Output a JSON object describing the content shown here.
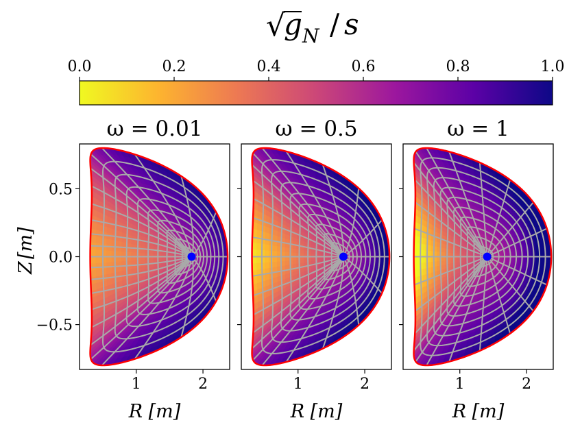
{
  "chart_data": {
    "type": "heatmap",
    "title_parts": {
      "radical": "√",
      "g": "g",
      "sub": "N",
      "slash": "/",
      "s": "s"
    },
    "colorbar": {
      "ticks": [
        "0.0",
        "0.2",
        "0.4",
        "0.6",
        "0.8",
        "1.0"
      ],
      "tick_values": [
        0.0,
        0.2,
        0.4,
        0.6,
        0.8,
        1.0
      ],
      "range": [
        0.0,
        1.0
      ],
      "colormap": "plasma_r",
      "stops": [
        "#f0f921",
        "#fdb42f",
        "#ed7953",
        "#cc4778",
        "#9c179e",
        "#5c01a6",
        "#0d0887"
      ]
    },
    "xlim": [
      0.15,
      2.4
    ],
    "ylim": [
      -0.83,
      0.83
    ],
    "xlabel": {
      "var": "R",
      "unit": "[m]"
    },
    "ylabel": {
      "var": "Z",
      "unit": "[m]"
    },
    "xticks": [
      "1",
      "2"
    ],
    "xtick_values": [
      1,
      2
    ],
    "yticks": [
      "0.5",
      "0.0",
      "−0.5"
    ],
    "ytick_values": [
      0.5,
      0.0,
      -0.5
    ],
    "boundary_color": "#ff0000",
    "grid_color": "#a9a9a9",
    "axis_point_color": "#0000ff",
    "panels": [
      {
        "label": "ω = 0.01",
        "omega": 0.01,
        "magnetic_axis": [
          1.83,
          0.0
        ]
      },
      {
        "label": "ω = 0.5",
        "omega": 0.5,
        "magnetic_axis": [
          1.68,
          0.0
        ]
      },
      {
        "label": "ω = 1",
        "omega": 1,
        "magnetic_axis": [
          1.41,
          0.0
        ]
      }
    ]
  }
}
